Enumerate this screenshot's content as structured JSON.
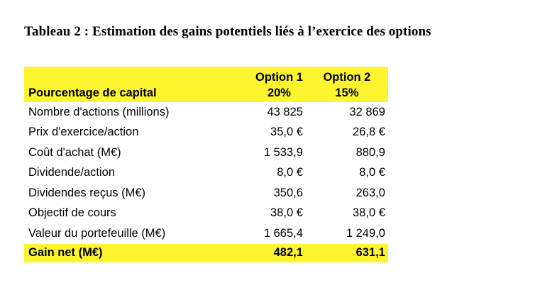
{
  "title": "Tableau 2 : Estimation des gains potentiels liés à l’exercice des options",
  "header": {
    "label": "Pourcentage de capital",
    "option1_name": "Option 1",
    "option2_name": "Option 2",
    "option1_pct": "20%",
    "option2_pct": "15%"
  },
  "rows": [
    {
      "label": "Nombre d'actions (millions)",
      "opt1": "43 825",
      "opt2": "32 869"
    },
    {
      "label": "Prix d'exercice/action",
      "opt1": "35,0 €",
      "opt2": "26,8 €"
    },
    {
      "label": "Coût d'achat (M€)",
      "opt1": "1 533,9",
      "opt2": "880,9"
    },
    {
      "label": "Dividende/action",
      "opt1": "8,0 €",
      "opt2": "8,0 €"
    },
    {
      "label": "Dividendes reçus (M€)",
      "opt1": "350,6",
      "opt2": "263,0"
    },
    {
      "label": "Objectif de cours",
      "opt1": "38,0 €",
      "opt2": "38,0 €"
    },
    {
      "label": "Valeur du portefeuille (M€)",
      "opt1": "1 665,4",
      "opt2": "1 249,0"
    }
  ],
  "total": {
    "label": "Gain net (M€)",
    "opt1": "482,1",
    "opt2": "631,1"
  },
  "colors": {
    "highlight": "#fbf42f"
  }
}
